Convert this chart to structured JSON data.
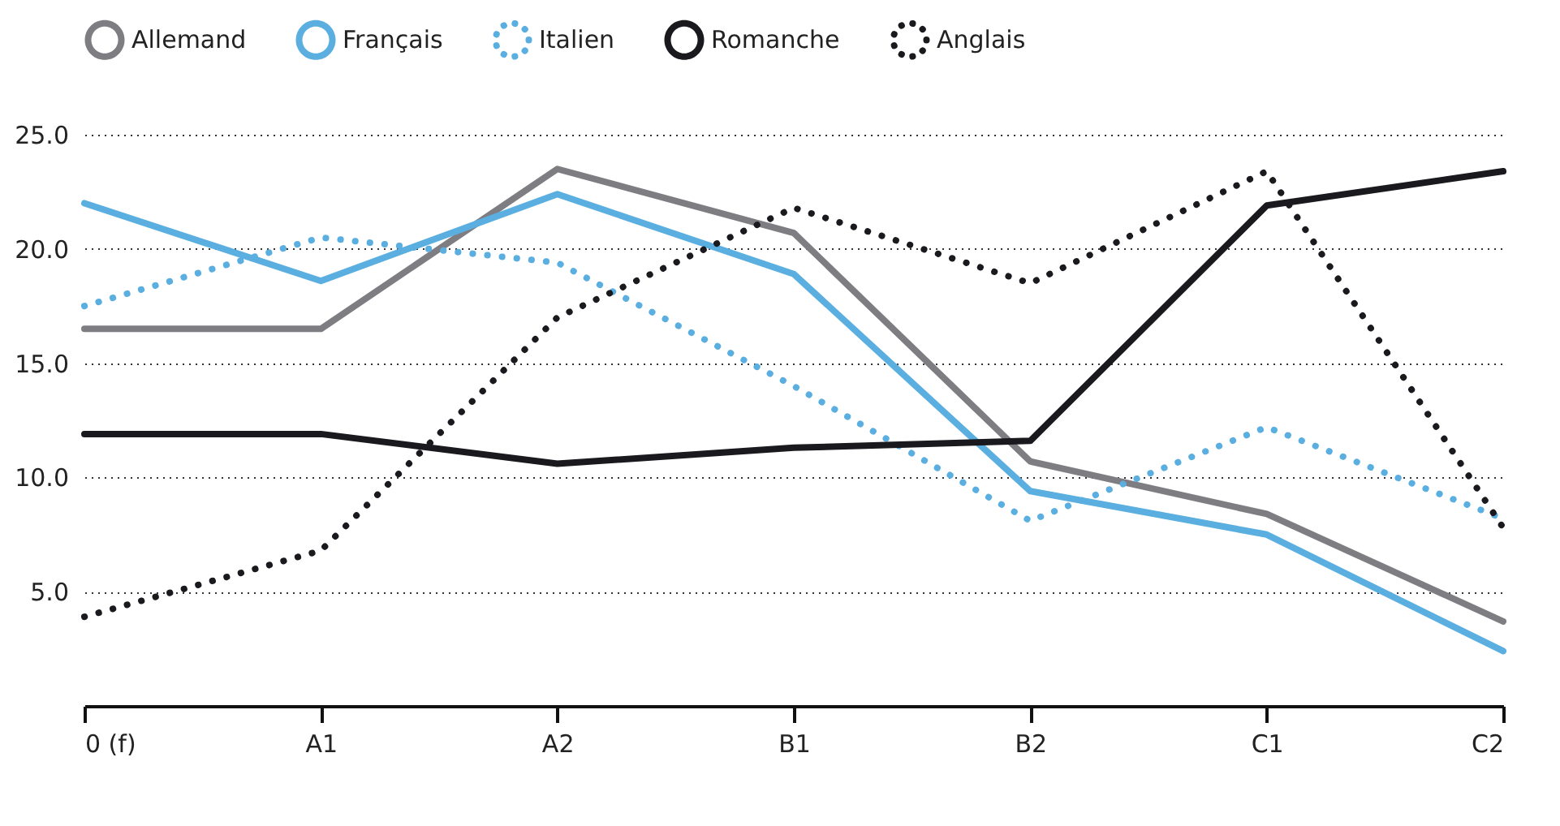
{
  "chart_data": {
    "type": "line",
    "categories": [
      "0 (f)",
      "A1",
      "A2",
      "B1",
      "B2",
      "C1",
      "C2"
    ],
    "series": [
      {
        "name": "Allemand",
        "color": "#7d7d82",
        "line_style": "solid",
        "values": [
          16.5,
          16.5,
          23.5,
          20.7,
          10.7,
          8.4,
          3.7
        ]
      },
      {
        "name": "Français",
        "color": "#5aafe0",
        "line_style": "solid",
        "values": [
          22.0,
          18.6,
          22.4,
          18.9,
          9.4,
          7.5,
          2.4
        ]
      },
      {
        "name": "Italien",
        "color": "#5aafe0",
        "line_style": "dotted",
        "values": [
          17.5,
          20.5,
          19.4,
          14.0,
          8.1,
          12.2,
          8.2
        ]
      },
      {
        "name": "Romanche",
        "color": "#1a1a1e",
        "line_style": "solid",
        "values": [
          11.9,
          11.9,
          10.6,
          11.3,
          11.6,
          21.9,
          23.4
        ]
      },
      {
        "name": "Anglais",
        "color": "#1a1a1e",
        "line_style": "dotted",
        "values": [
          3.9,
          6.8,
          17.0,
          21.8,
          18.5,
          23.4,
          7.8
        ]
      }
    ],
    "ylim": [
      0,
      25
    ],
    "yticks": [
      {
        "value": 5,
        "label": "5.0"
      },
      {
        "value": 10,
        "label": "10.0"
      },
      {
        "value": 15,
        "label": "15.0"
      },
      {
        "value": 20,
        "label": "20.0"
      },
      {
        "value": 25,
        "label": "25.0"
      }
    ],
    "grid": "y",
    "legend": "top"
  }
}
